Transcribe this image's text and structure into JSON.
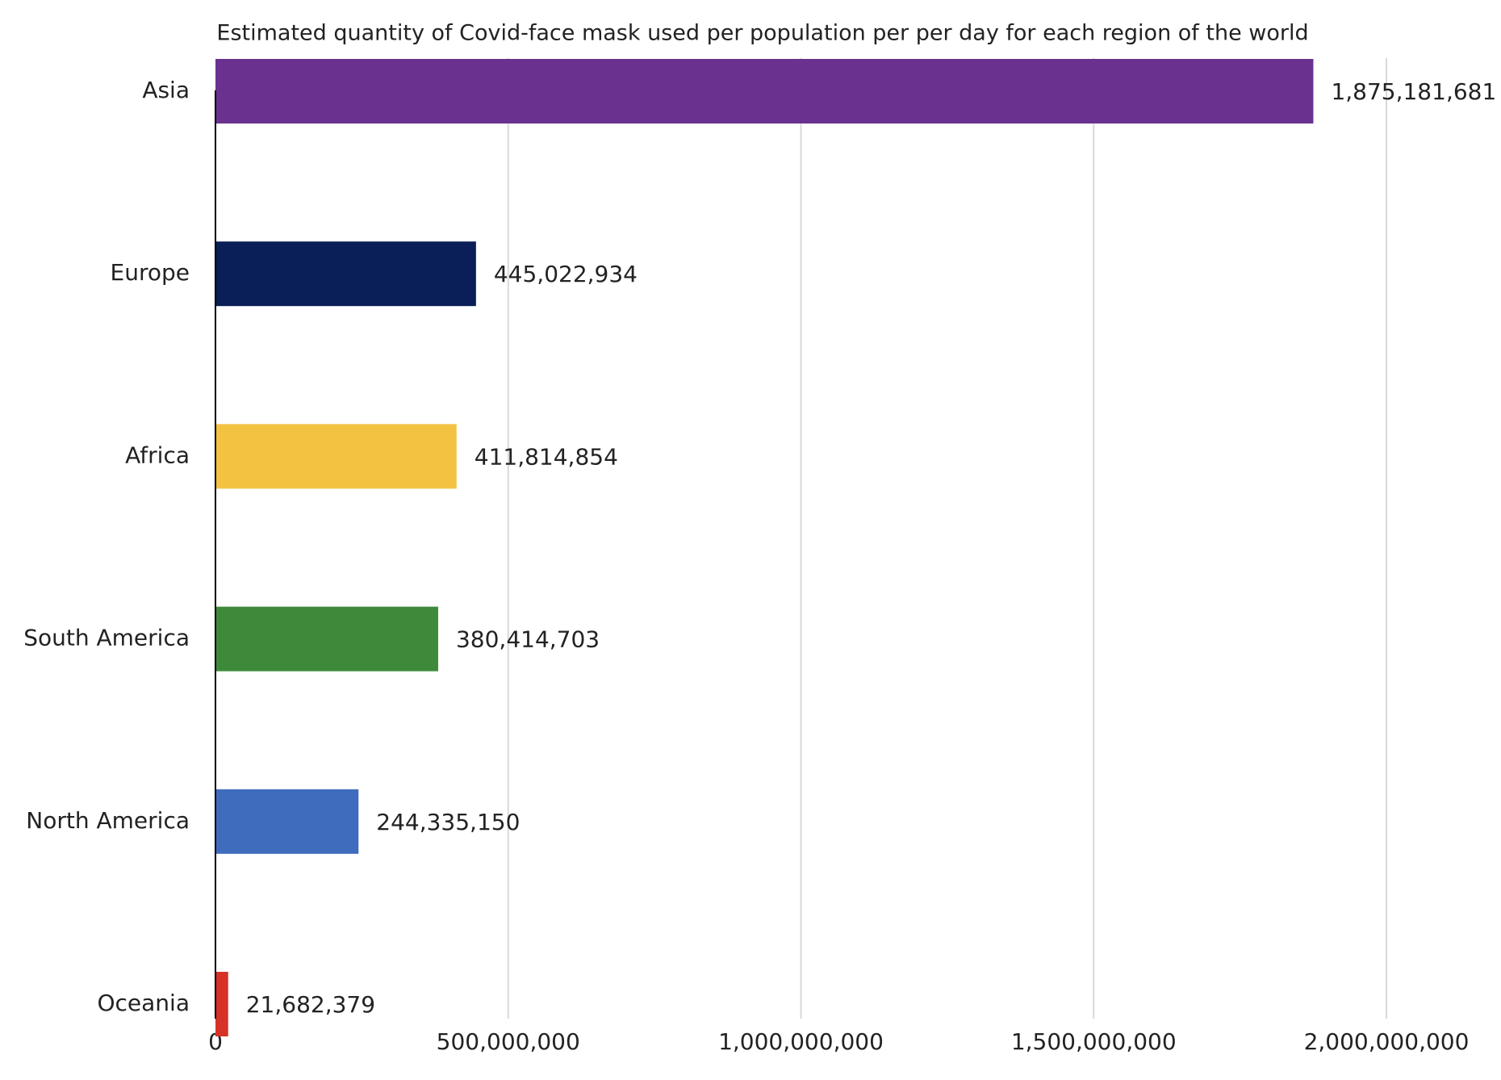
{
  "chart_data": {
    "type": "hbar",
    "title": "Estimated quantity of Covid-face mask used per population per per day for each region of the world",
    "categories": [
      "Asia",
      "Europe",
      "Africa",
      "South America",
      "North America",
      "Oceania"
    ],
    "values": [
      1875181681,
      445022934,
      411814854,
      380414703,
      244335150,
      21682379
    ],
    "value_labels": [
      "1,875,181,681",
      "445,022,934",
      "411,814,854",
      "380,414,703",
      "244,335,150",
      "21,682,379"
    ],
    "colors": [
      "#6a318f",
      "#0a1f58",
      "#f3c241",
      "#3d8b3a",
      "#3f6cbd",
      "#d63228"
    ],
    "xlim": [
      0,
      2000000000
    ],
    "xticks": [
      0,
      {
        "value": 500000000,
        "label": "500,000,000"
      },
      {
        "value": 1000000000,
        "label": "1,000,000,000"
      },
      {
        "value": 1500000000,
        "label": "1,500,000,000"
      },
      {
        "value": 2000000000,
        "label": "2,000,000,000"
      }
    ],
    "grid": true
  }
}
